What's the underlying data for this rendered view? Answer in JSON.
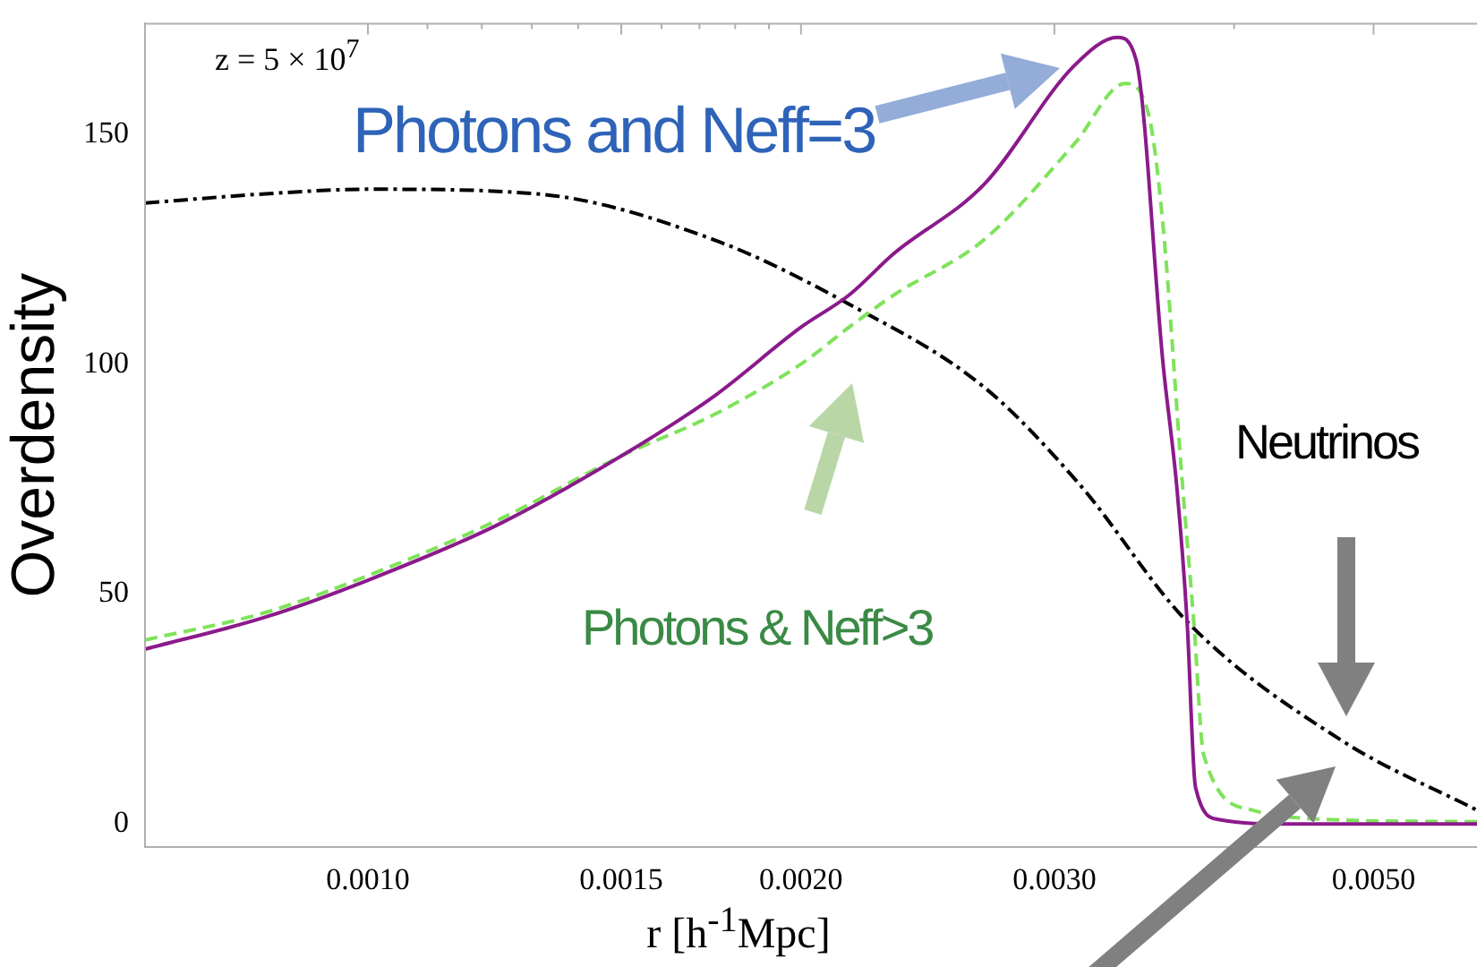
{
  "chart_data": {
    "type": "line",
    "xlabel": "r [h$^{-1}$Mpc]",
    "ylabel": "Overdensity",
    "log": "x",
    "marker": "none",
    "xlim": [
      0.0007,
      0.0059
    ],
    "xticks": [
      {
        "value": 0.001,
        "label": "0.0010"
      },
      {
        "value": 0.0011,
        "label": null
      },
      {
        "value": 0.0012,
        "label": null
      },
      {
        "value": 0.0013,
        "label": null
      },
      {
        "value": 0.0014,
        "label": null
      },
      {
        "value": 0.0015,
        "label": "0.0015"
      },
      {
        "value": 0.0016,
        "label": null
      },
      {
        "value": 0.0017,
        "label": null
      },
      {
        "value": 0.0018,
        "label": null
      },
      {
        "value": 0.0019,
        "label": null
      },
      {
        "value": 0.002,
        "label": "0.0020"
      },
      {
        "value": 0.003,
        "label": "0.0030"
      },
      {
        "value": 0.004,
        "label": null
      },
      {
        "value": 0.005,
        "label": "0.0050"
      }
    ],
    "ylim": [
      -5,
      174
    ],
    "yticks": [
      0,
      50,
      100,
      150
    ],
    "annotations": [
      "z = 5 × 10$^{7}$"
    ],
    "series": [
      {
        "name": "Photons and Neff=3",
        "color": "#8b1a8b",
        "line_style": "solid",
        "x": [
          0.0007,
          0.000849,
          0.001,
          0.00123,
          0.0015,
          0.00174,
          0.002,
          0.00216,
          0.00232,
          0.00268,
          0.0031,
          0.00332,
          0.00342,
          0.00357,
          0.00365,
          0.00371,
          0.00376,
          0.0039,
          0.00437,
          0.0059
        ],
        "values": [
          38,
          45,
          53,
          65,
          80,
          93,
          108,
          115,
          124,
          139,
          165,
          171,
          166,
          100,
          73,
          44,
          8,
          1,
          0,
          0
        ]
      },
      {
        "name": "Photons & Neff>3",
        "color": "#7fe35a",
        "line_style": "dashed",
        "x": [
          0.0007,
          0.000849,
          0.001,
          0.00123,
          0.0015,
          0.00174,
          0.002,
          0.00216,
          0.00232,
          0.00268,
          0.0031,
          0.00336,
          0.00349,
          0.00357,
          0.00368,
          0.00375,
          0.00381,
          0.00412,
          0.00463,
          0.0059
        ],
        "values": [
          40,
          46,
          54,
          66,
          80,
          89,
          100,
          108,
          115,
          127,
          148,
          161,
          154,
          130,
          75,
          44,
          15,
          3,
          1,
          0.5
        ]
      },
      {
        "name": "Neutrinos",
        "color": "#000000",
        "line_style": "dotted",
        "x": [
          0.0007,
          0.000849,
          0.001,
          0.00131,
          0.00174,
          0.00216,
          0.00268,
          0.00312,
          0.00371,
          0.00476,
          0.0059
        ],
        "values": [
          135,
          137,
          138,
          137,
          127,
          113,
          95,
          74,
          44,
          18,
          3
        ]
      }
    ]
  }
}
